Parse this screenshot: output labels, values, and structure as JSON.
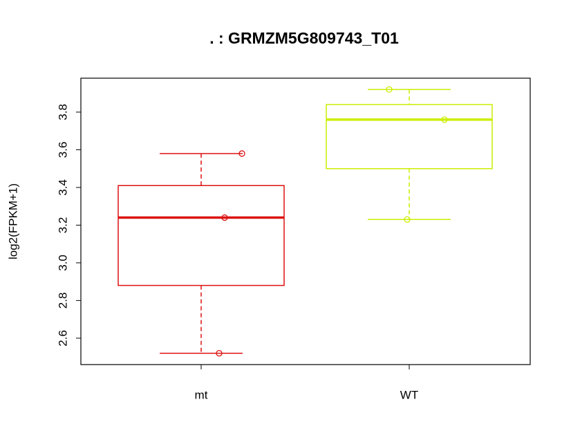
{
  "chart_data": {
    "type": "box",
    "title": ". :  GRMZM5G809743_T01",
    "y_label": "log2(FPKM+1)",
    "categories": [
      "mt",
      "WT"
    ],
    "boxes": [
      {
        "color": "#dd1111",
        "min": 2.52,
        "q1": 2.88,
        "median": 3.24,
        "q3": 3.41,
        "max": 3.58,
        "points": [
          3.58,
          3.24,
          2.52
        ]
      },
      {
        "color": "#ccee00",
        "min": 3.23,
        "q1": 3.5,
        "median": 3.76,
        "q3": 3.84,
        "max": 3.92,
        "points": [
          3.92,
          3.76,
          3.23
        ]
      }
    ],
    "ylim": [
      2.46,
      3.98
    ],
    "yticks": [
      {
        "value": 2.6,
        "label": "2.6"
      },
      {
        "value": 2.8,
        "label": "2.8"
      },
      {
        "value": 3.0,
        "label": "3.0"
      },
      {
        "value": 3.2,
        "label": "3.2"
      },
      {
        "value": 3.4,
        "label": "3.4"
      },
      {
        "value": 3.6,
        "label": "3.6"
      },
      {
        "value": 3.8,
        "label": "3.8"
      }
    ]
  }
}
